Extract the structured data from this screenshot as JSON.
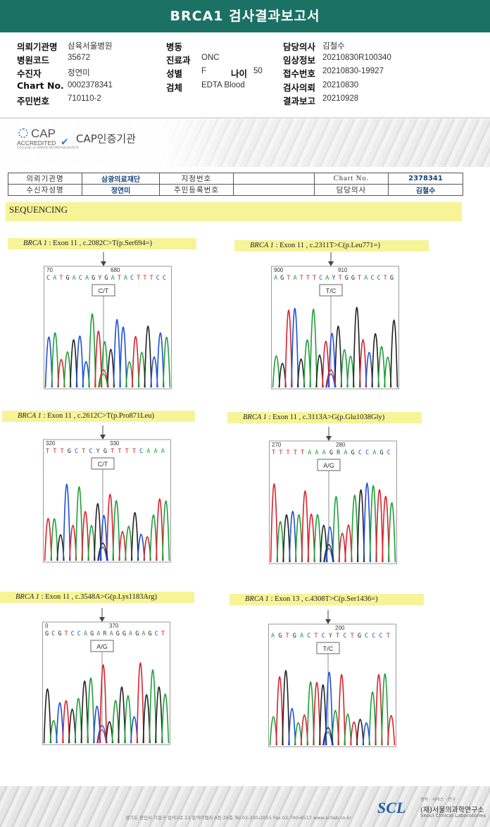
{
  "report": {
    "title": "BRCA1 검사결과보고서"
  },
  "header": {
    "fields": [
      {
        "label": "의뢰기관명",
        "value": "삼육서울병원"
      },
      {
        "label": "병원코드",
        "value": "35672"
      },
      {
        "label": "수진자",
        "value": "정연미"
      },
      {
        "label": "Chart No.",
        "value": "0002378341"
      },
      {
        "label": "주민번호",
        "value": "710110-2"
      },
      {
        "label": "병동",
        "value": ""
      },
      {
        "label": "진료과",
        "value": "ONC"
      },
      {
        "label": "성별",
        "value": "F"
      },
      {
        "label": "나이",
        "value": "50"
      },
      {
        "label": "검체",
        "value": "EDTA Blood"
      },
      {
        "label": "담당의사",
        "value": "김철수"
      },
      {
        "label": "임상정보",
        "value": "20210830R100340"
      },
      {
        "label": "접수번호",
        "value": "20210830-19927"
      },
      {
        "label": "검사의뢰",
        "value": "20210830"
      },
      {
        "label": "결과보고",
        "value": "20210928"
      }
    ]
  },
  "cap": {
    "logo_big": "CAP",
    "logo_small": "ACCREDITED",
    "logo_tiny": "COLLEGE of AMERICAN PATHOLOGISTS",
    "label": "CAP인증기관"
  },
  "info_table": {
    "institution_label": "의뢰기관명",
    "institution_value": "삼광의료재단",
    "ref_no_label": "지정번호",
    "chart_label": "Chart No.",
    "chart_value": "2378341",
    "patient_label": "수신자성명",
    "patient_value": "정연미",
    "regno_label": "주민등록번호",
    "doctor_label": "담당의사",
    "doctor_value": "김철수"
  },
  "section_title": "SEQUENCING",
  "variants": [
    {
      "gene": "BRCA 1",
      "desc": " : Exon 11 , c.2082C>T(p.Ser694=)",
      "seq": "CATGACAGYGATACTTTCC",
      "pos_left": "70",
      "pos_mid": "680",
      "call": "C/T",
      "colors": [
        "#1f4fd6",
        "#1f9e3a",
        "#d9232e",
        "#1f9e3a",
        "#222222",
        "#1f4fd6"
      ]
    },
    {
      "gene": "BRCA 1",
      "desc": " : Exon 11 , c.2311T>C(p.Leu771=)",
      "seq": "AGTATTTCAYTGGTACCTG",
      "pos_left": "900",
      "pos_mid": "910",
      "call": "T/C",
      "colors": [
        "#1f9e3a",
        "#222222",
        "#d9232e",
        "#1f4fd6",
        "#222222",
        "#1f9e3a"
      ]
    },
    {
      "gene": "BRCA 1",
      "desc": " : Exon 11 , c.2612C>T(p.Pro871Leu)",
      "seq": "TTTGCTCYGTTTTCAAA",
      "pos_left": "320",
      "pos_mid": "330",
      "call": "C/T",
      "colors": [
        "#d9232e",
        "#1f9e3a",
        "#222222",
        "#1f4fd6",
        "#d9232e",
        "#1f9e3a"
      ]
    },
    {
      "gene": "BRCA 1",
      "desc": " : Exon 11 , c.3113A>G(p.Glu1038Gly)",
      "seq": "TTTTTAAAGRAGCCAGC",
      "pos_left": "270",
      "pos_mid": "280",
      "call": "A/G",
      "colors": [
        "#d9232e",
        "#1f9e3a",
        "#222222",
        "#1f4fd6",
        "#1f9e3a",
        "#d9232e"
      ]
    },
    {
      "gene": "BRCA 1",
      "desc": " : Exon 11 , c.3548A>G(p.Lys1183Arg)",
      "seq": "GCGTCCAGARAGGAGAGCT",
      "pos_left": "0",
      "pos_mid": "370",
      "call": "A/G",
      "colors": [
        "#222222",
        "#1f9e3a",
        "#1f4fd6",
        "#d9232e",
        "#222222",
        "#1f9e3a"
      ]
    },
    {
      "gene": "BRCA 1",
      "desc": " : Exon 13 , c.4308T>C(p.Ser1436=)",
      "seq": "AGTGACTCYTCTGCCCT",
      "pos_left": "",
      "pos_mid": "200",
      "call": "T/C",
      "colors": [
        "#1f9e3a",
        "#d9232e",
        "#222222",
        "#1f4fd6",
        "#1f9e3a",
        "#d9232e"
      ]
    }
  ],
  "footer": {
    "address": "경기도 용인시 기흥구 흥덕1로 13 흥덕IT밸리 A동 26층  Tel.02-330-2055  Fax.02-790-6517  www.scllab.co.kr",
    "logo": "SCL",
    "slogan": "정직 · 서비스 · 연구",
    "org_kr": "(재)서울의과학연구소",
    "org_en": "Seoul Clinical Laboratories"
  }
}
